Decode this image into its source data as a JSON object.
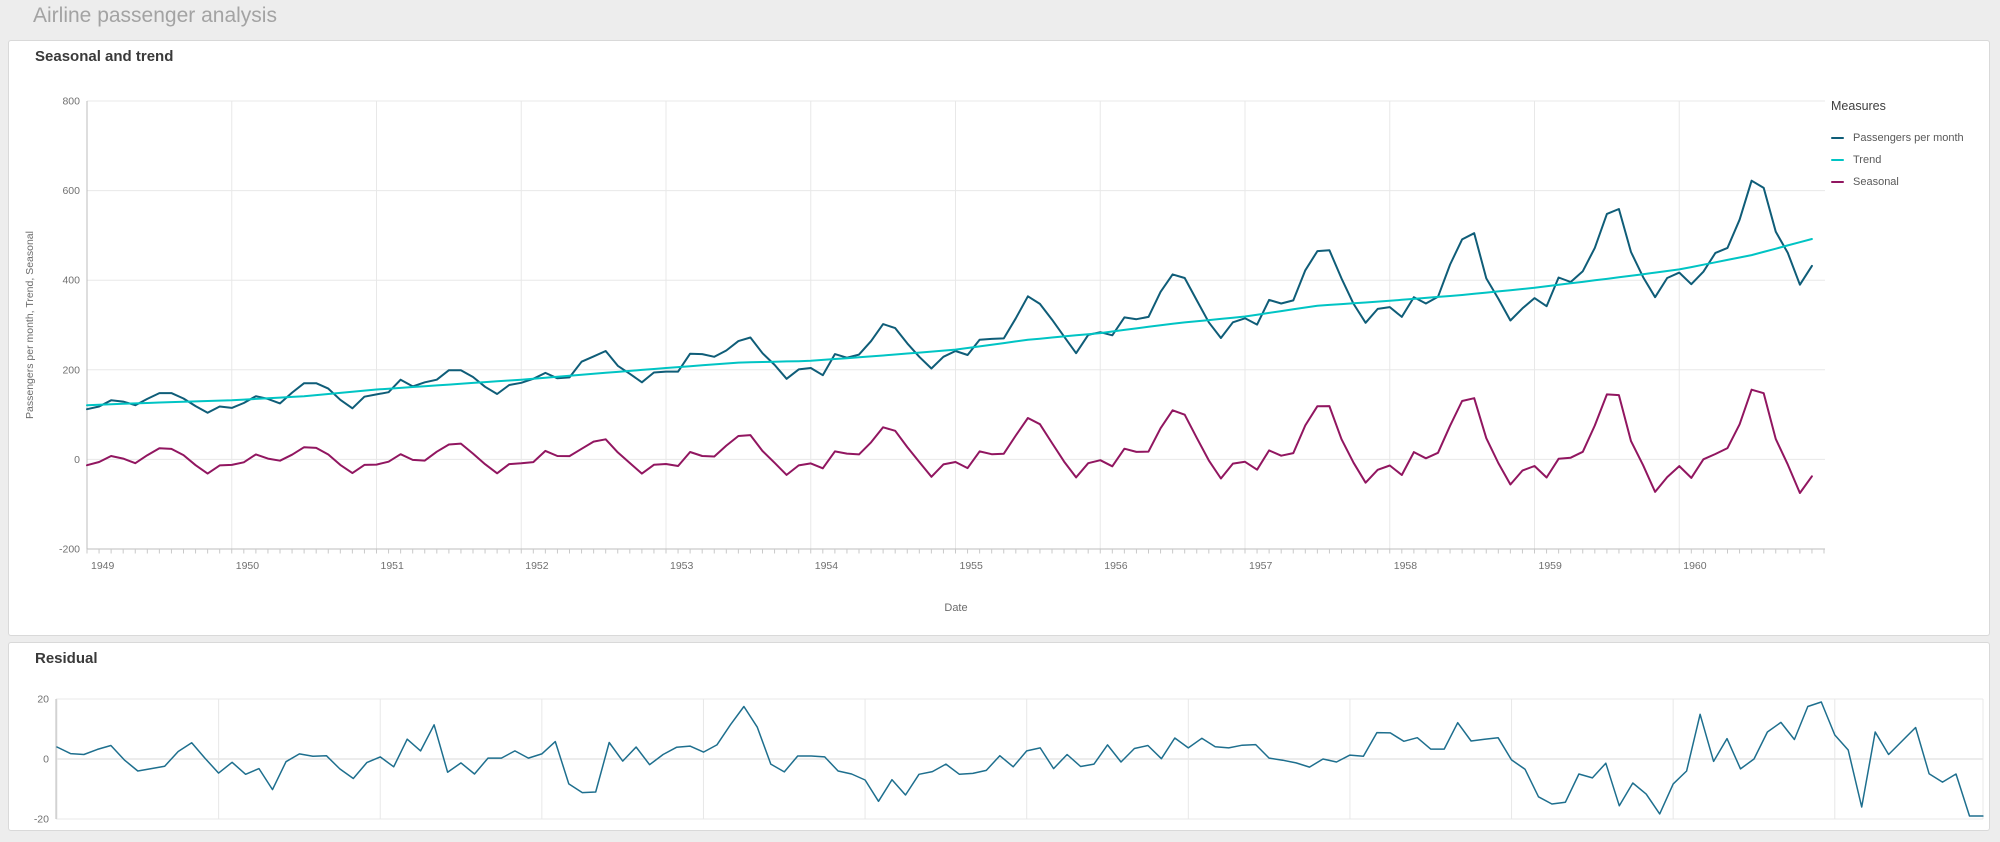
{
  "page": {
    "title": "Airline passenger analysis"
  },
  "chart_data": [
    {
      "type": "line",
      "title": "Seasonal and trend",
      "xlabel": "Date",
      "ylabel": "Passengers per month, Trend, Seasonal",
      "x_start": "1949-01",
      "x_end": "1960-12",
      "points_per_year": 12,
      "x_tick_labels": [
        "1949",
        "1950",
        "1951",
        "1952",
        "1953",
        "1954",
        "1955",
        "1956",
        "1957",
        "1958",
        "1959",
        "1960"
      ],
      "ylim": [
        -200,
        800
      ],
      "y_ticks": [
        800,
        600,
        400,
        200,
        0,
        -200
      ],
      "grid": true,
      "legend_position": "right",
      "legend_title": "Measures",
      "series": [
        {
          "name": "Passengers per month",
          "color": "#0f5d78",
          "values": [
            112,
            118,
            132,
            129,
            121,
            135,
            148,
            148,
            136,
            119,
            104,
            118,
            115,
            126,
            141,
            135,
            125,
            149,
            170,
            170,
            158,
            133,
            114,
            140,
            145,
            150,
            178,
            163,
            172,
            178,
            199,
            199,
            184,
            162,
            146,
            166,
            171,
            180,
            193,
            181,
            183,
            218,
            230,
            242,
            209,
            191,
            172,
            194,
            196,
            196,
            236,
            235,
            229,
            243,
            264,
            272,
            237,
            211,
            180,
            201,
            204,
            188,
            235,
            227,
            234,
            264,
            302,
            293,
            259,
            229,
            203,
            229,
            242,
            233,
            267,
            269,
            270,
            315,
            364,
            347,
            312,
            274,
            237,
            278,
            284,
            277,
            317,
            313,
            318,
            374,
            413,
            405,
            355,
            306,
            271,
            306,
            315,
            301,
            356,
            348,
            355,
            422,
            465,
            467,
            404,
            347,
            305,
            336,
            340,
            318,
            362,
            348,
            363,
            435,
            491,
            505,
            404,
            359,
            310,
            337,
            360,
            342,
            406,
            396,
            420,
            472,
            548,
            559,
            463,
            407,
            362,
            405,
            417,
            391,
            419,
            461,
            472,
            535,
            622,
            606,
            508,
            461,
            390,
            432
          ]
        },
        {
          "name": "Trend",
          "color": "#00c4c4",
          "values": [
            121,
            122,
            123,
            124,
            125,
            126,
            127,
            127.8,
            128.7,
            129.5,
            130.3,
            131.2,
            132,
            133.5,
            135,
            136.5,
            138,
            139.5,
            141,
            143.5,
            146,
            148.5,
            151,
            153.5,
            156,
            157.8,
            159.7,
            161.5,
            163.3,
            165.2,
            167,
            168.8,
            170.7,
            172.5,
            174.3,
            176.2,
            178,
            180.2,
            182.3,
            184.5,
            186.7,
            188.8,
            191,
            193.2,
            195.3,
            197.5,
            199.7,
            201.8,
            204,
            206,
            208,
            210,
            212,
            214,
            216,
            216.7,
            217.3,
            218,
            218.7,
            219.3,
            220,
            222,
            224,
            226,
            228,
            230,
            232,
            234.2,
            236.3,
            238.5,
            240.7,
            242.8,
            245,
            248.7,
            252.3,
            256,
            259.7,
            263.3,
            267,
            269.5,
            272,
            274.5,
            277,
            279.5,
            282,
            285.5,
            289,
            292.5,
            296,
            299.5,
            303,
            305.7,
            308.3,
            311,
            313.7,
            316.3,
            319,
            323,
            327,
            331,
            335,
            339,
            343,
            344.8,
            346.7,
            348.5,
            350.3,
            352.2,
            354,
            356.2,
            358.3,
            360.5,
            362.7,
            364.8,
            367,
            369.7,
            372.3,
            375,
            377.7,
            380.3,
            383,
            386.3,
            389.7,
            393,
            396.3,
            399.7,
            403,
            406.5,
            410,
            413.5,
            417,
            420.5,
            424,
            429.3,
            434.7,
            440,
            445.3,
            450.7,
            456,
            463.2,
            470.4,
            477.6,
            484.8,
            492
          ]
        },
        {
          "name": "Seasonal",
          "color": "#911660",
          "values": [
            -13,
            -5.8,
            7.5,
            1.8,
            -8.5,
            9.3,
            25,
            23.4,
            9.7,
            -13,
            -31.7,
            -13.4,
            -12.3,
            -6.4,
            11.1,
            1.7,
            -2.8,
            10.4,
            27.3,
            25.6,
            10.9,
            -12.2,
            -30.5,
            -12.3,
            -11.7,
            -5.2,
            11.7,
            -1.2,
            -2.7,
            17.2,
            33.3,
            35.2,
            13,
            -10.8,
            -31,
            -10.5,
            -8.7,
            -6,
            19,
            7.7,
            7.3,
            23.7,
            39.7,
            44.8,
            15.6,
            -8,
            -31.6,
            -12.1,
            -10.3,
            -14.7,
            16.6,
            7.5,
            6.4,
            30.7,
            52.3,
            54.3,
            18.7,
            -7.7,
            -34.7,
            -13.3,
            -9,
            -19.9,
            17.9,
            13,
            11.1,
            38.2,
            71.7,
            63.9,
            27.5,
            -5.7,
            -38.8,
            -11.2,
            -5.7,
            -19.4,
            17.9,
            11.5,
            12.8,
            53.4,
            92.3,
            78.5,
            36.5,
            -5,
            -40.1,
            -8.5,
            -1.7,
            -15.4,
            23.9,
            16.8,
            17.4,
            69.7,
            109.7,
            99.7,
            48,
            -2.3,
            -42.7,
            -9.3,
            -5.3,
            -22.9,
            20.2,
            8.3,
            14.1,
            75.9,
            118.7,
            118.9,
            45.2,
            -7.5,
            -51.9,
            -23.3,
            -13.7,
            -34.8,
            16.3,
            2.5,
            14.7,
            75.2,
            130.3,
            136.7,
            47.3,
            -8,
            -56,
            -25,
            -14.7,
            -40.3,
            1.4,
            3.8,
            16.9,
            75.6,
            145,
            143.5,
            40.8,
            -13,
            -72.5,
            -39.6,
            -15,
            -41.3,
            0.3,
            12,
            25.2,
            78.3,
            155.5,
            147.7,
            45.3,
            -11.6,
            -74.9,
            -37.8
          ]
        }
      ]
    },
    {
      "type": "line",
      "title": "Residual",
      "xlabel": "",
      "ylabel": "",
      "x_start": "1949-01",
      "x_end": "1960-12",
      "points_per_year": 12,
      "x_tick_labels": [],
      "ylim": [
        -20,
        20
      ],
      "y_ticks": [
        20,
        0,
        -20
      ],
      "grid": true,
      "legend_position": "none",
      "series": [
        {
          "name": "Residual",
          "color": "#1e6f8e",
          "values": [
            4,
            1.8,
            1.5,
            3.2,
            4.5,
            -0.3,
            -4,
            -3.2,
            -2.4,
            2.5,
            5.4,
            0.2,
            -4.7,
            -1.1,
            -5.1,
            -3.2,
            -10.2,
            -0.9,
            1.7,
            0.9,
            1.1,
            -3.3,
            -6.5,
            -1.2,
            0.7,
            -2.6,
            6.6,
            2.7,
            11.4,
            -4.4,
            -1.3,
            -5,
            0.3,
            0.3,
            2.7,
            0.3,
            1.7,
            5.8,
            -8.3,
            -11.2,
            -11,
            5.5,
            -0.7,
            4,
            -1.9,
            1.5,
            3.9,
            4.3,
            2.3,
            4.7,
            11.4,
            17.5,
            10.6,
            -1.7,
            -4.3,
            1,
            1,
            0.7,
            -4,
            -5,
            -7,
            -14.1,
            -6.9,
            -12,
            -5.1,
            -4.2,
            -1.7,
            -5.1,
            -4.8,
            -3.8,
            1.1,
            -2.6,
            2.7,
            3.7,
            -3.2,
            1.5,
            -2.5,
            -1.7,
            4.7,
            -1,
            3.5,
            4.5,
            0.1,
            7,
            3.7,
            6.9,
            4.1,
            3.7,
            4.6,
            4.8,
            0.3,
            -0.4,
            -1.3,
            -2.7,
            0,
            -1,
            1.3,
            0.9,
            8.8,
            8.7,
            5.9,
            7.1,
            3.3,
            3.3,
            12.1,
            6,
            6.6,
            7.1,
            -0.3,
            -3.4,
            -12.6,
            -15,
            -14.4,
            -5,
            -6.3,
            -1.4,
            -15.6,
            -8,
            -11.7,
            -18.3,
            -8.3,
            -4,
            14.9,
            -0.8,
            6.8,
            -3.3,
            0,
            9,
            12.2,
            6.5,
            17.5,
            19,
            8,
            3,
            -16,
            9,
            1.5,
            6,
            10.5,
            -4.9,
            -7.7,
            -5,
            -19,
            -19
          ]
        }
      ]
    }
  ]
}
